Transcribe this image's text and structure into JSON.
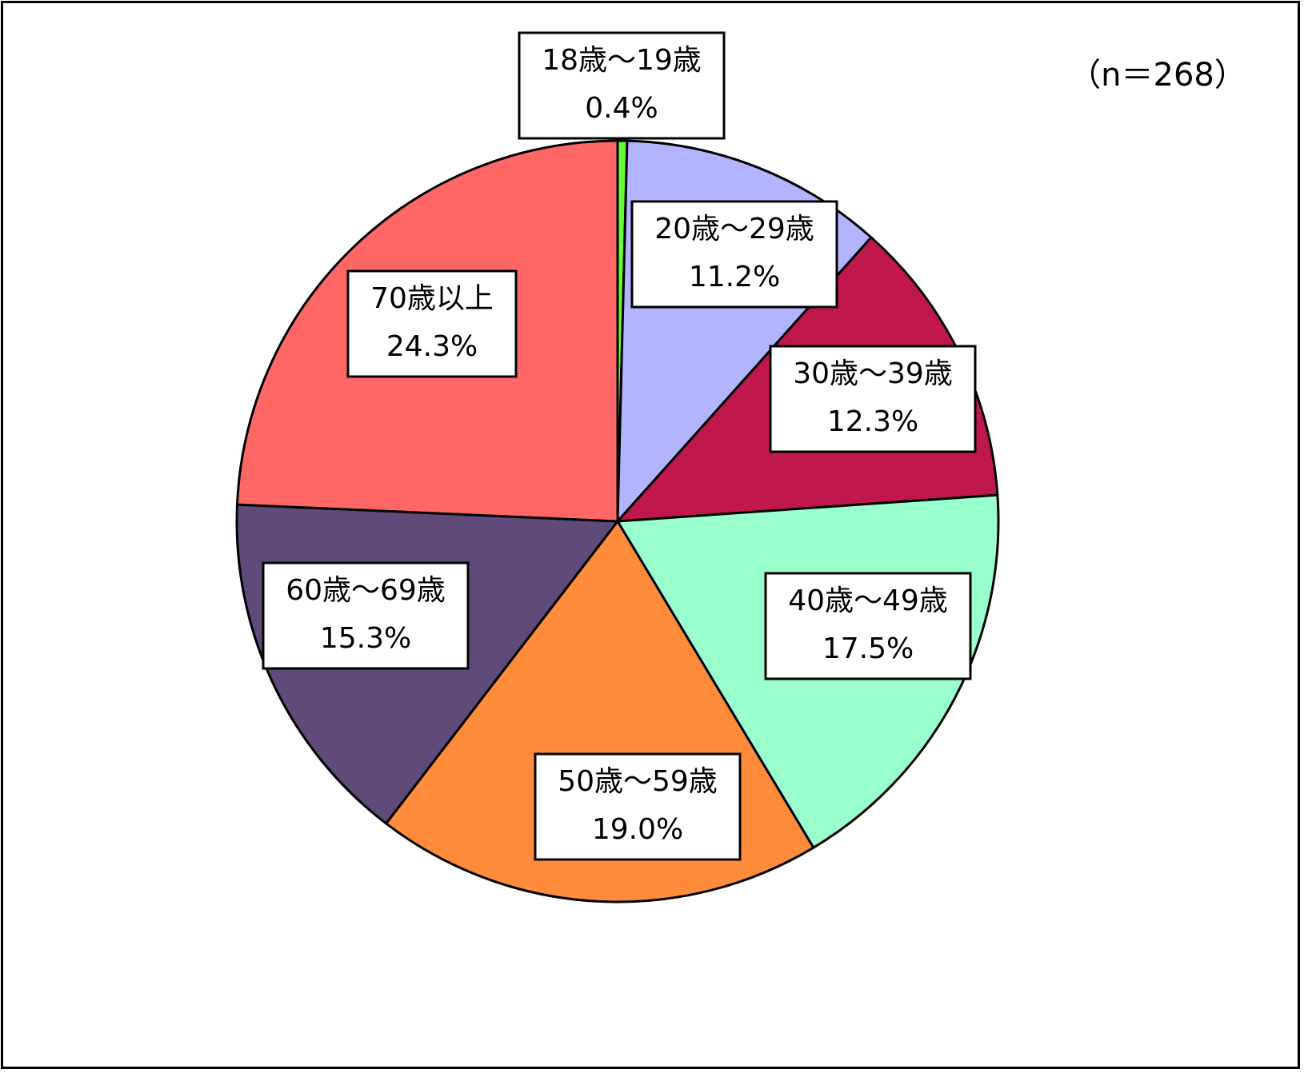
{
  "chart_data": {
    "type": "pie",
    "title": "",
    "note": "（n＝268）",
    "start_angle_deg": 0,
    "direction": "clockwise",
    "slices": [
      {
        "label": "18歳～19歳",
        "value": 0.4,
        "value_label": "0.4%",
        "color": "#66ff33"
      },
      {
        "label": "20歳～29歳",
        "value": 11.2,
        "value_label": "11.2%",
        "color": "#b3b3ff"
      },
      {
        "label": "30歳～39歳",
        "value": 12.3,
        "value_label": "12.3%",
        "color": "#c0184c"
      },
      {
        "label": "40歳～49歳",
        "value": 17.5,
        "value_label": "17.5%",
        "color": "#99ffcc"
      },
      {
        "label": "50歳～59歳",
        "value": 19.0,
        "value_label": "19.0%",
        "color": "#ff8c3a"
      },
      {
        "label": "60歳～69歳",
        "value": 15.3,
        "value_label": "15.3%",
        "color": "#5f4a7a"
      },
      {
        "label": "70歳以上",
        "value": 24.3,
        "value_label": "24.3%",
        "color": "#ff6666"
      }
    ],
    "legend": "none"
  }
}
